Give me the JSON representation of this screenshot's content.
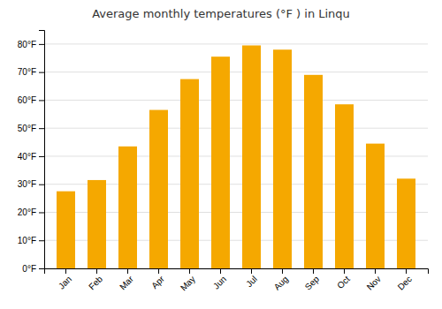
{
  "chart_data": {
    "type": "bar",
    "title": "Average monthly temperatures (°F ) in Linqu",
    "categories": [
      "Jan",
      "Feb",
      "Mar",
      "Apr",
      "May",
      "Jun",
      "Jul",
      "Aug",
      "Sep",
      "Oct",
      "Nov",
      "Dec"
    ],
    "values": [
      27.5,
      31.5,
      43.5,
      56.5,
      67.5,
      75.5,
      79.5,
      78.0,
      69.0,
      58.5,
      44.5,
      32.0
    ],
    "color": "#F5A800",
    "ylim": [
      0,
      85
    ],
    "yticks": [
      {
        "value": 0,
        "label": "0°F"
      },
      {
        "value": 10,
        "label": "10°F"
      },
      {
        "value": 20,
        "label": "20°F"
      },
      {
        "value": 30,
        "label": "30°F"
      },
      {
        "value": 40,
        "label": "40°F"
      },
      {
        "value": 50,
        "label": "50°F"
      },
      {
        "value": 60,
        "label": "60°F"
      },
      {
        "value": 70,
        "label": "70°F"
      },
      {
        "value": 80,
        "label": "80°F"
      }
    ],
    "grid": true
  }
}
